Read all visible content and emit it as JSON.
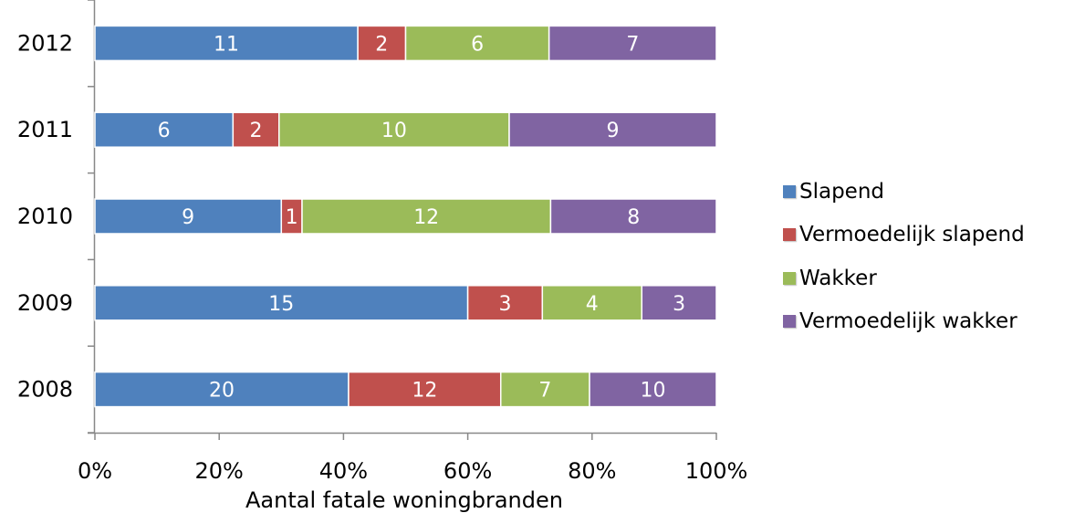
{
  "chart_data": {
    "type": "bar",
    "orientation": "horizontal",
    "stacked": "percent",
    "categories": [
      "2012",
      "2011",
      "2010",
      "2009",
      "2008"
    ],
    "series": [
      {
        "name": "Slapend",
        "color": "#4f81bd",
        "values": [
          11,
          6,
          9,
          15,
          20
        ]
      },
      {
        "name": "Vermoedelijk slapend",
        "color": "#c0504d",
        "values": [
          2,
          2,
          1,
          3,
          12
        ]
      },
      {
        "name": "Wakker",
        "color": "#9bbb59",
        "values": [
          6,
          10,
          12,
          4,
          7
        ]
      },
      {
        "name": "Vermoedelijk wakker",
        "color": "#8064a2",
        "values": [
          7,
          9,
          8,
          3,
          10
        ]
      }
    ],
    "xlabel": "Aantal fatale woningbranden",
    "xticks": [
      "0%",
      "20%",
      "40%",
      "60%",
      "80%",
      "100%"
    ],
    "xlim": [
      0,
      100
    ],
    "legend_position": "right",
    "grid": false
  }
}
